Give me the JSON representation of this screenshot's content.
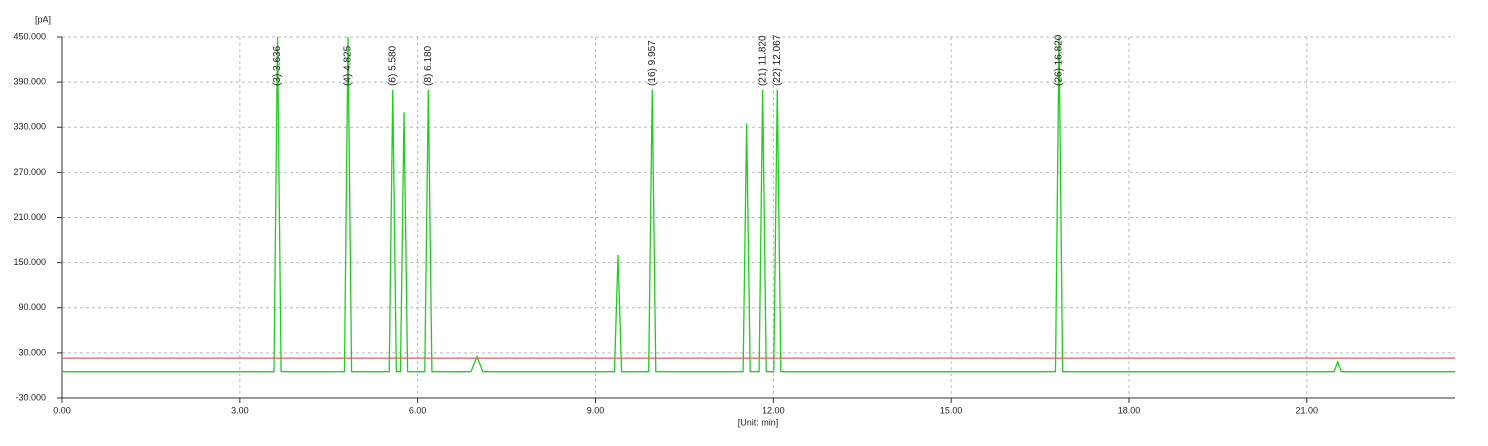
{
  "chart_data": {
    "type": "line",
    "y_label": "[pA]",
    "x_label": "[Unit: min]",
    "xlim": [
      0,
      23.5
    ],
    "ylim": [
      -30,
      450
    ],
    "xticks": [
      {
        "value": 0,
        "label": "0.00"
      },
      {
        "value": 3,
        "label": "3.00"
      },
      {
        "value": 6,
        "label": "6.00"
      },
      {
        "value": 9,
        "label": "9.00"
      },
      {
        "value": 12,
        "label": "12.00"
      },
      {
        "value": 15,
        "label": "15.00"
      },
      {
        "value": 18,
        "label": "18.00"
      },
      {
        "value": 21,
        "label": "21.00"
      }
    ],
    "yticks": [
      {
        "value": -30,
        "label": "-30.000"
      },
      {
        "value": 30,
        "label": "30.000"
      },
      {
        "value": 90,
        "label": "90.000"
      },
      {
        "value": 150,
        "label": "150.000"
      },
      {
        "value": 210,
        "label": "210.000"
      },
      {
        "value": 270,
        "label": "270.000"
      },
      {
        "value": 330,
        "label": "330.000"
      },
      {
        "value": 390,
        "label": "390.000"
      },
      {
        "value": 450,
        "label": "450.000"
      }
    ],
    "grid": true,
    "series": [
      {
        "color": "#22cc22",
        "x": [
          0,
          3.576,
          3.636,
          3.696,
          4.765,
          4.825,
          4.885,
          5.52,
          5.58,
          5.64,
          5.71,
          5.77,
          5.83,
          6.12,
          6.18,
          6.24,
          6.9,
          7.0,
          7.1,
          9.32,
          9.38,
          9.44,
          9.897,
          9.957,
          10.017,
          11.49,
          11.55,
          11.61,
          11.76,
          11.82,
          11.88,
          12.007,
          12.067,
          12.127,
          16.76,
          16.82,
          16.88,
          21.46,
          21.52,
          21.58,
          23.5
        ],
        "values": [
          5,
          5,
          450,
          5,
          5,
          450,
          5,
          5,
          380,
          5,
          5,
          350,
          5,
          5,
          380,
          5,
          5,
          25,
          5,
          5,
          160,
          5,
          5,
          380,
          5,
          5,
          335,
          5,
          5,
          380,
          5,
          5,
          380,
          5,
          5,
          450,
          5,
          5,
          18,
          5,
          5
        ]
      },
      {
        "color": "#e06060",
        "x": [
          0,
          23.5
        ],
        "values": [
          23,
          23
        ]
      }
    ],
    "annotations": [
      {
        "text": "(3) 3.636",
        "x": 3.636,
        "y": 385
      },
      {
        "text": "(4) 4.825",
        "x": 4.825,
        "y": 385
      },
      {
        "text": "(6) 5.580",
        "x": 5.58,
        "y": 385
      },
      {
        "text": "(8) 6.180",
        "x": 6.18,
        "y": 385
      },
      {
        "text": "(16) 9.957",
        "x": 9.957,
        "y": 385
      },
      {
        "text": "(21) 11.820",
        "x": 11.82,
        "y": 385
      },
      {
        "text": "(22) 12.067",
        "x": 12.067,
        "y": 385
      },
      {
        "text": "(26) 16.820",
        "x": 16.82,
        "y": 385
      }
    ]
  }
}
